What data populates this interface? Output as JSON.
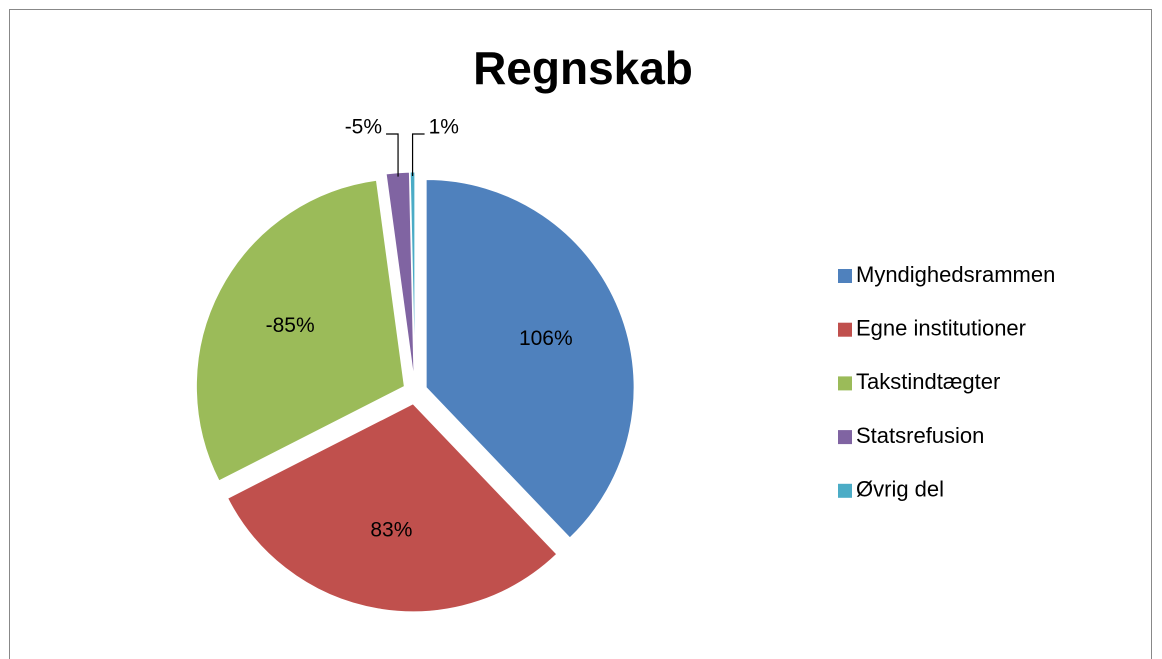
{
  "chart_data": {
    "type": "pie",
    "title": "Regnskab",
    "categories": [
      "Myndighedsrammen",
      "Egne institutioner",
      "Takstindtægter",
      "Statsrefusion",
      "Øvrig del"
    ],
    "values": [
      106,
      83,
      -85,
      -5,
      1
    ],
    "value_labels": [
      "106%",
      "83%",
      "-85%",
      "-5%",
      "1%"
    ],
    "colors": [
      "#4f81bd",
      "#c0504d",
      "#9bbb59",
      "#8064a2",
      "#4bacc6"
    ],
    "legend": "right"
  }
}
